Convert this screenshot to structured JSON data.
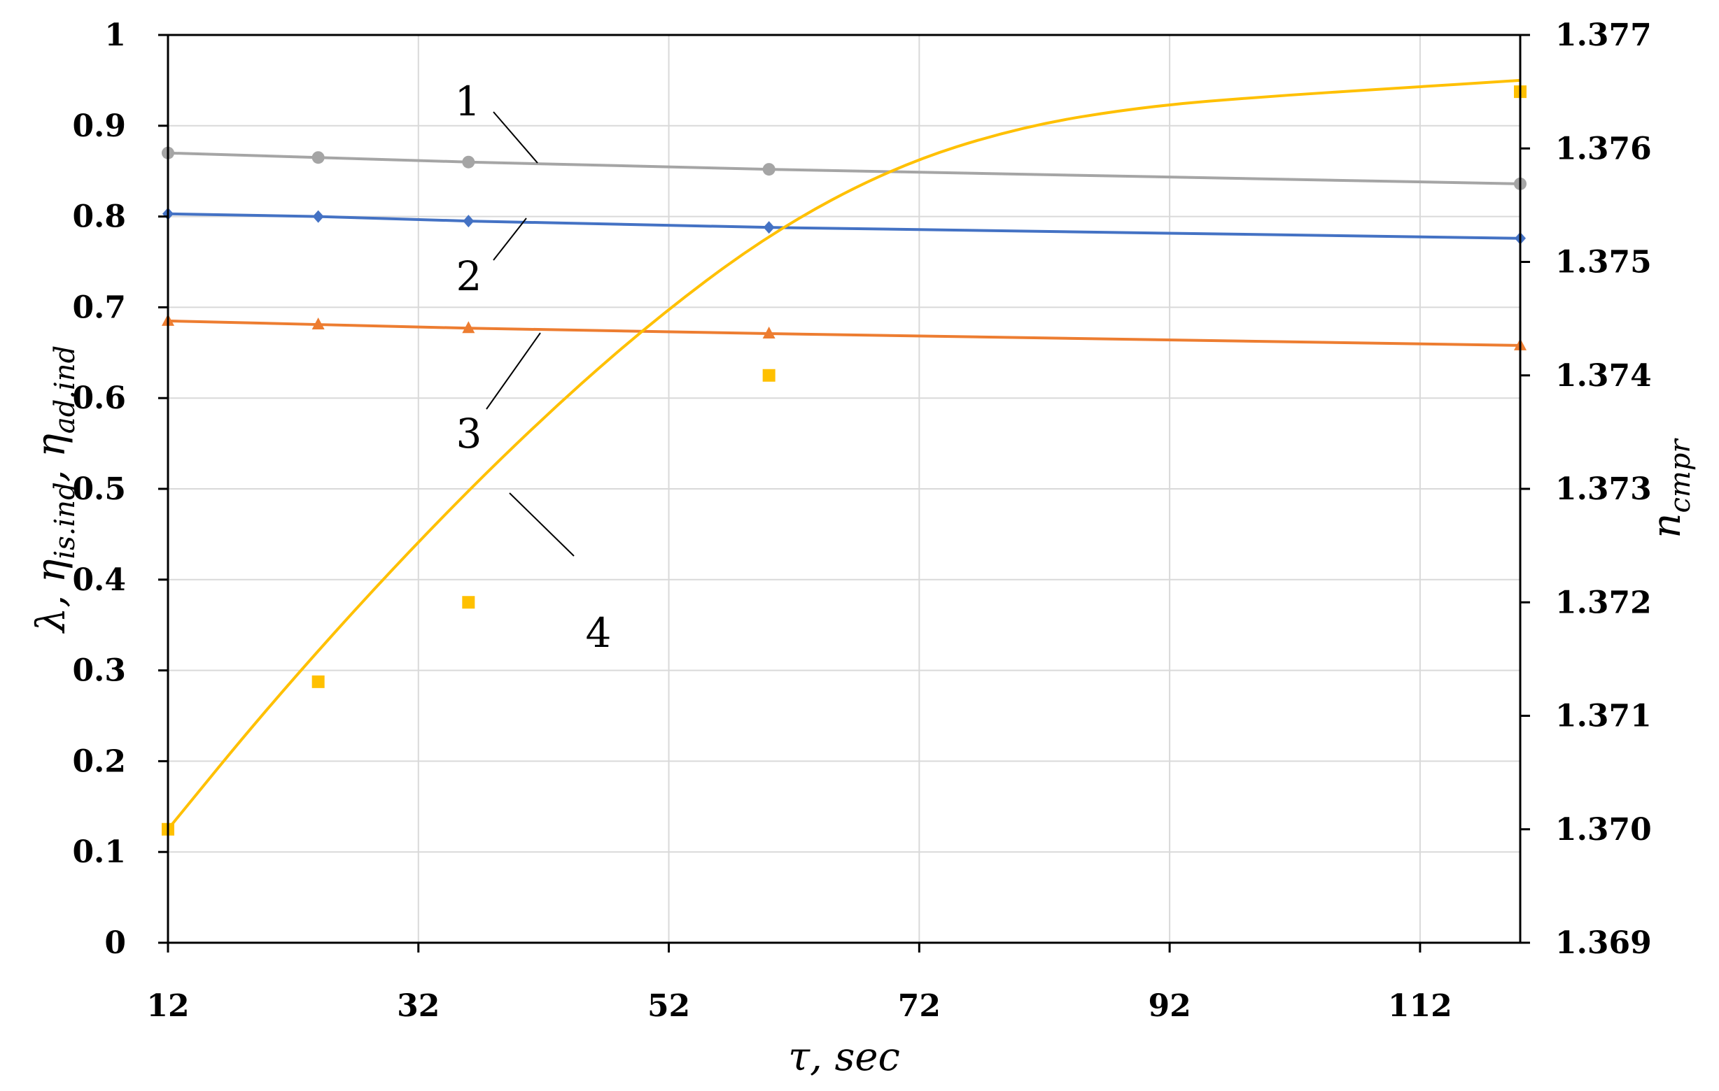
{
  "chart_data": {
    "type": "line",
    "xlabel": "τ, sec",
    "ylabel_left": {
      "parts": [
        "λ, η",
        "is.ind",
        ", η",
        "ad.ind"
      ]
    },
    "ylabel_right": {
      "parts": [
        "n",
        "cmpr"
      ]
    },
    "xlim": [
      12,
      120
    ],
    "x_ticks": [
      "12",
      "32",
      "52",
      "72",
      "92",
      "112"
    ],
    "x_tick_values": [
      12,
      32,
      52,
      72,
      92,
      112
    ],
    "ylim_left": [
      0,
      1
    ],
    "y_left_ticks": [
      "0",
      "0.1",
      "0.2",
      "0.3",
      "0.4",
      "0.5",
      "0.6",
      "0.7",
      "0.8",
      "0.9",
      "1"
    ],
    "ylim_right": [
      1.369,
      1.377
    ],
    "y_right_ticks": [
      "1.369",
      "1.370",
      "1.371",
      "1.372",
      "1.373",
      "1.374",
      "1.375",
      "1.376",
      "1.377"
    ],
    "grid": true,
    "series": [
      {
        "label": "1",
        "axis": "left",
        "color": "#a5a5a5",
        "marker": "circle",
        "x": [
          12,
          24,
          36,
          60,
          120
        ],
        "y": [
          0.87,
          0.865,
          0.86,
          0.852,
          0.836
        ]
      },
      {
        "label": "2",
        "axis": "left",
        "color": "#4472c4",
        "marker": "diamond",
        "x": [
          12,
          24,
          36,
          60,
          120
        ],
        "y": [
          0.803,
          0.8,
          0.795,
          0.788,
          0.776
        ]
      },
      {
        "label": "3",
        "axis": "left",
        "color": "#ed7d31",
        "marker": "triangle",
        "x": [
          12,
          24,
          36,
          60,
          120
        ],
        "y": [
          0.685,
          0.681,
          0.677,
          0.671,
          0.658
        ]
      },
      {
        "label": "4",
        "axis": "right",
        "color": "#ffc000",
        "marker": "square",
        "points_x": [
          12,
          24,
          36,
          60,
          120
        ],
        "points_y": [
          1.37,
          1.3713,
          1.372,
          1.374,
          1.3765
        ],
        "fit_x": [
          12,
          20,
          30,
          40,
          50,
          60,
          70,
          80,
          90,
          100,
          110,
          120
        ],
        "fit_y": [
          1.37,
          1.37108,
          1.37231,
          1.37343,
          1.37442,
          1.37525,
          1.37584,
          1.37619,
          1.37637,
          1.37646,
          1.37653,
          1.3766
        ]
      }
    ]
  }
}
